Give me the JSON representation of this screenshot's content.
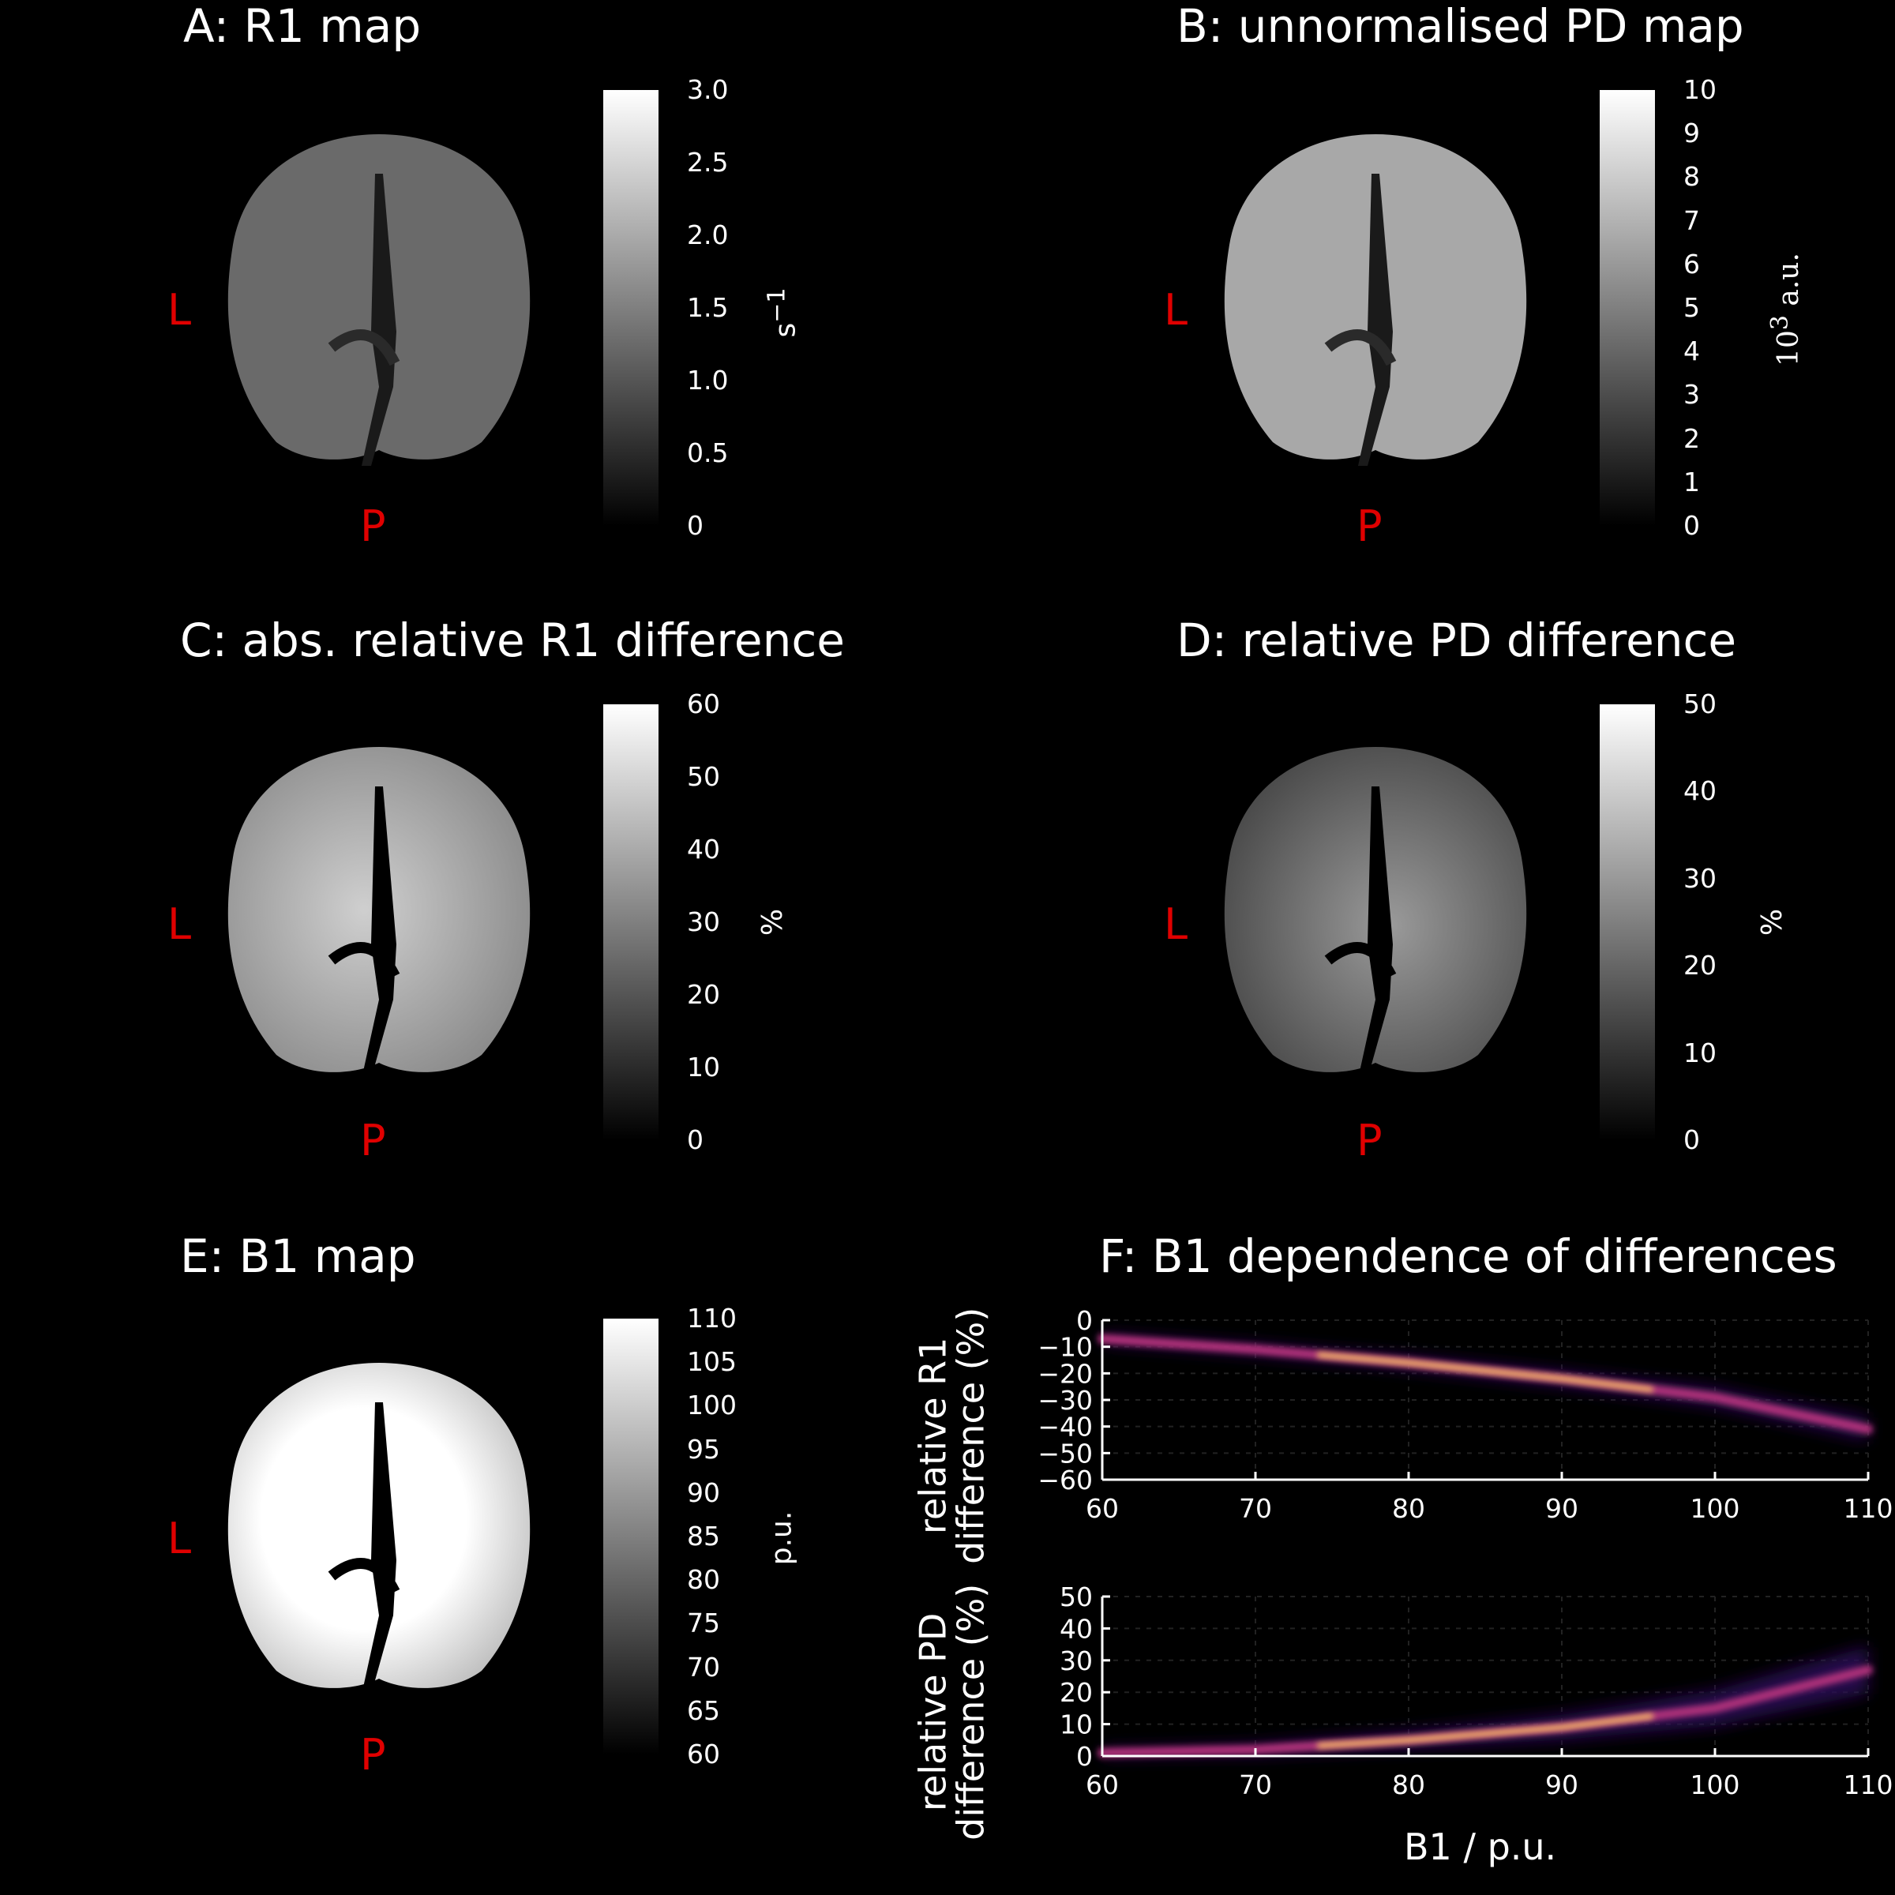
{
  "panels": {
    "A": {
      "title": "A: R1 map",
      "left_label": "L",
      "bottom_label": "P",
      "unit_base": "s",
      "unit_sup": "−1",
      "ticks": [
        "3.0",
        "2.5",
        "2.0",
        "1.5",
        "1.0",
        "0.5",
        "0"
      ]
    },
    "B": {
      "title": "B: unnormalised PD map",
      "left_label": "L",
      "bottom_label": "P",
      "unit_base": "10",
      "unit_sup": "3",
      "unit_suffix": " a.u.",
      "ticks": [
        "10",
        "9",
        "8",
        "7",
        "6",
        "5",
        "4",
        "3",
        "2",
        "1",
        "0"
      ]
    },
    "C": {
      "title": "C: abs. relative R1 difference",
      "left_label": "L",
      "bottom_label": "P",
      "unit": "%",
      "ticks": [
        "60",
        "50",
        "40",
        "30",
        "20",
        "10",
        "0"
      ]
    },
    "D": {
      "title": "D: relative PD difference",
      "left_label": "L",
      "bottom_label": "P",
      "unit": "%",
      "ticks": [
        "50",
        "40",
        "30",
        "20",
        "10",
        "0"
      ]
    },
    "E": {
      "title": "E: B1 map",
      "left_label": "L",
      "bottom_label": "P",
      "unit": "p.u.",
      "ticks": [
        "110",
        "105",
        "100",
        "95",
        "90",
        "85",
        "80",
        "75",
        "70",
        "65",
        "60"
      ]
    },
    "F": {
      "title": "F: B1 dependence of differences"
    }
  },
  "colors": {
    "orientation_label": "#e00000",
    "density_low": "#2a0a55",
    "density_mid": "#b0307a",
    "density_high": "#ffd060"
  },
  "chart_data": [
    {
      "type": "heatmap",
      "xlabel": "",
      "ylabel": "relative R1 difference (%)",
      "xlim": [
        60,
        110
      ],
      "ylim": [
        -60,
        0
      ],
      "xticks": [
        60,
        70,
        80,
        90,
        100,
        110
      ],
      "yticks": [
        0,
        -10,
        -20,
        -30,
        -40,
        -50,
        -60
      ],
      "ridge": {
        "x": [
          60,
          70,
          80,
          85,
          90,
          100,
          110
        ],
        "y": [
          -7,
          -11,
          -16,
          -19,
          -22,
          -29,
          -41
        ]
      }
    },
    {
      "type": "heatmap",
      "xlabel": "B1 / p.u.",
      "ylabel": "relative PD difference (%)",
      "xlim": [
        60,
        110
      ],
      "ylim": [
        0,
        50
      ],
      "xticks": [
        60,
        70,
        80,
        90,
        100,
        110
      ],
      "yticks": [
        0,
        10,
        20,
        30,
        40,
        50
      ],
      "ridge": {
        "x": [
          60,
          70,
          80,
          85,
          90,
          100,
          110
        ],
        "y": [
          1,
          2,
          5,
          7,
          9,
          15,
          27
        ]
      }
    }
  ]
}
